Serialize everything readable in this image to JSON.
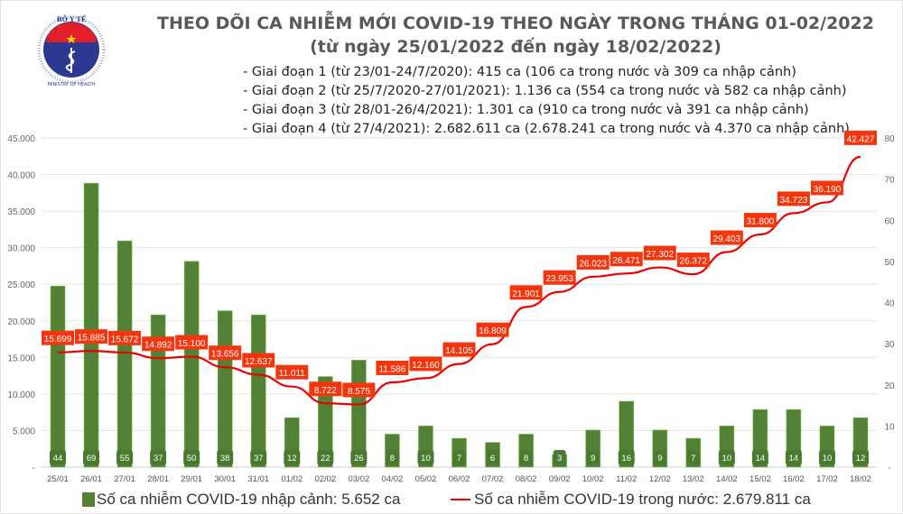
{
  "header": {
    "title": "THEO DÕI CA NHIỄM MỚI COVID-19 THEO NGÀY TRONG THÁNG 01-02/2022",
    "subtitle": "(từ ngày 25/01/2022 đến ngày 18/02/2022)",
    "bullets": [
      "- Giai đoạn 1 (từ 23/01-24/7/2020): 415 ca (106 ca trong nước và 309 ca nhập cảnh)",
      "- Giai đoạn 2 (từ 25/7/2020-27/01/2021): 1.136 ca (554 ca trong nước và 582 ca nhập cảnh)",
      "- Giai đoạn 3 (từ 28/01-26/4/2021): 1.301 ca (910 ca trong nước và 391 ca nhập cảnh)",
      "- Giai đoạn 4 (từ 27/4/2021): 2.682.611 ca (2.678.241 ca trong nước và 4.370 ca nhập cảnh)"
    ]
  },
  "logo": {
    "text_top": "BỘ Y TẾ",
    "text_bottom": "MINISTRY OF HEALTH"
  },
  "chart_data": {
    "type": "bar+line",
    "categories": [
      "25/01",
      "26/01",
      "27/01",
      "28/01",
      "29/01",
      "30/01",
      "31/01",
      "01/02",
      "02/02",
      "03/02",
      "04/02",
      "05/02",
      "06/02",
      "07/02",
      "08/02",
      "09/02",
      "10/02",
      "11/02",
      "12/02",
      "13/02",
      "14/02",
      "15/02",
      "16/02",
      "17/02",
      "18/02"
    ],
    "series": [
      {
        "name": "Số ca nhiễm COVID-19 nhập cảnh: 5.652 ca",
        "type": "bar",
        "axis": "right",
        "color": "#538135",
        "values": [
          44,
          69,
          55,
          37,
          50,
          38,
          37,
          12,
          22,
          26,
          8,
          10,
          7,
          6,
          8,
          3,
          9,
          16,
          9,
          7,
          10,
          14,
          14,
          10,
          12
        ]
      },
      {
        "name": "Số ca nhiễm COVID-19 trong nước: 2.679.811 ca",
        "type": "line",
        "axis": "left",
        "color": "#ee0000",
        "values": [
          15699,
          15885,
          15672,
          14892,
          15100,
          13656,
          12637,
          11011,
          8722,
          8575,
          11586,
          12160,
          14105,
          16809,
          21901,
          23953,
          26023,
          26471,
          27302,
          26372,
          29403,
          31800,
          34723,
          36190,
          42427
        ]
      }
    ],
    "left_axis": {
      "ylim": [
        0,
        45000
      ],
      "ticks": [
        "-",
        "5.000",
        "10.000",
        "15.000",
        "20.000",
        "25.000",
        "30.000",
        "35.000",
        "40.000",
        "45.000"
      ]
    },
    "right_axis": {
      "ylim": [
        0,
        80
      ],
      "ticks": [
        "-",
        "10",
        "20",
        "30",
        "40",
        "50",
        "60",
        "70",
        "80"
      ]
    },
    "grid": true,
    "legend": "bottom"
  },
  "colors": {
    "bar": "#538135",
    "line": "#ee0000",
    "label_bg": "#f4360f",
    "grid": "#e6e6e6"
  }
}
